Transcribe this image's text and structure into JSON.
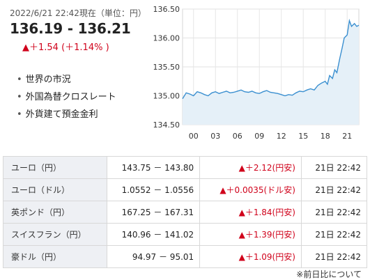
{
  "header": {
    "timestamp": "2022/6/21 22:42現在（単位：円）",
    "rate": "136.19 - 136.21",
    "change": "▲＋1.54 (＋1.14% )"
  },
  "links": [
    "世界の市況",
    "外国為替クロスレート",
    "外貨建て預金金利"
  ],
  "colors": {
    "up": "#d0021b",
    "line": "#3a8fd0",
    "area": "#e5f0f8"
  },
  "chart_data": {
    "type": "area",
    "ylim": [
      134.5,
      136.5
    ],
    "yticks": [
      "136.50",
      "136.00",
      "135.50",
      "135.00",
      "134.50"
    ],
    "xticks": [
      "00",
      "03",
      "06",
      "09",
      "12",
      "15",
      "18",
      "21"
    ],
    "xtick_hours": [
      0,
      3,
      6,
      9,
      12,
      15,
      18,
      21
    ],
    "xlim": [
      -1.5,
      22.6
    ],
    "grid": true,
    "series": [
      {
        "x": [
          -1.5,
          -1,
          -0.5,
          0,
          0.5,
          1,
          1.5,
          2,
          2.5,
          3,
          3.5,
          4,
          4.5,
          5,
          5.5,
          6,
          6.5,
          7,
          7.5,
          8,
          8.5,
          9,
          9.5,
          10,
          10.5,
          11,
          11.5,
          12,
          12.5,
          13,
          13.5,
          14,
          14.5,
          15,
          15.5,
          16,
          16.5,
          17,
          17.5,
          18,
          18.3,
          18.6,
          19,
          19.3,
          19.6,
          20,
          20.3,
          20.6,
          21,
          21.3,
          21.6,
          22,
          22.3,
          22.6
        ],
        "y": [
          134.95,
          135.05,
          135.03,
          135.0,
          135.07,
          135.05,
          135.02,
          135.0,
          135.05,
          135.07,
          135.04,
          135.06,
          135.08,
          135.05,
          135.06,
          135.08,
          135.1,
          135.07,
          135.06,
          135.08,
          135.05,
          135.04,
          135.07,
          135.09,
          135.06,
          135.05,
          135.04,
          135.02,
          135.0,
          135.02,
          135.01,
          135.05,
          135.08,
          135.07,
          135.1,
          135.12,
          135.1,
          135.18,
          135.22,
          135.25,
          135.2,
          135.35,
          135.3,
          135.45,
          135.4,
          135.65,
          135.82,
          136.0,
          136.05,
          136.3,
          136.2,
          136.25,
          136.2,
          136.22
        ]
      }
    ]
  },
  "rates": [
    {
      "name": "ユーロ（円）",
      "value": "143.75 － 143.80",
      "change": "▲＋2.12(円安)",
      "time": "21日 22:42"
    },
    {
      "name": "ユーロ（ドル）",
      "value": "1.0552 － 1.0556",
      "change": "▲＋0.0035(ドル安)",
      "time": "21日 22:42"
    },
    {
      "name": "英ポンド（円）",
      "value": "167.25 － 167.31",
      "change": "▲＋1.84(円安)",
      "time": "21日 22:42"
    },
    {
      "name": "スイスフラン（円）",
      "value": "140.96 － 141.02",
      "change": "▲＋1.39(円安)",
      "time": "21日 22:42"
    },
    {
      "name": "豪ドル（円）",
      "value": "94.97 － 95.01",
      "change": "▲＋1.09(円安)",
      "time": "21日 22:42"
    }
  ],
  "footnote": "※前日比について"
}
